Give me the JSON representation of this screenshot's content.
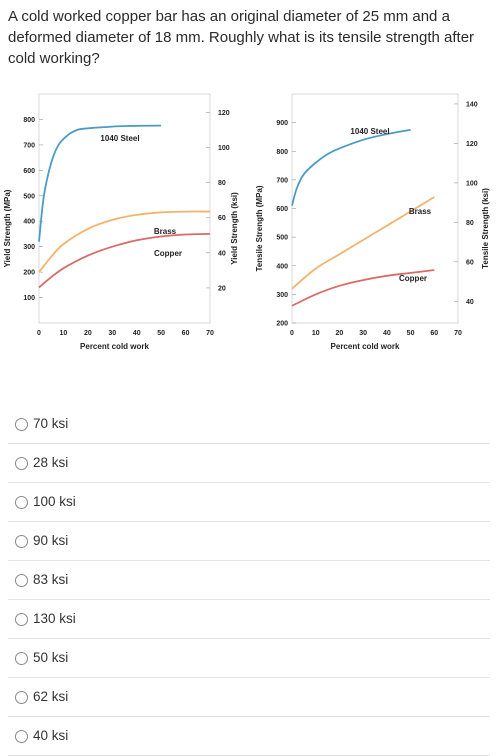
{
  "question": {
    "text": "A cold worked copper bar has an original diameter of 25 mm and a deformed diameter of 18 mm. Roughly what is its tensile strength after cold working?"
  },
  "chart_data": [
    {
      "type": "line",
      "xlabel": "Percent cold work",
      "ylabel": "Yield Strength (MPa)",
      "ylabel_right": "Yield Strength (ksi)",
      "xlim": [
        0,
        70
      ],
      "ylim": [
        0,
        900
      ],
      "x_ticks": [
        "0",
        "10",
        "20",
        "30",
        "40",
        "50",
        "60",
        "70"
      ],
      "y_ticks": [
        "100",
        "200",
        "300",
        "400",
        "500",
        "600",
        "700",
        "800"
      ],
      "y_ticks_right": [
        "20",
        "40",
        "60",
        "80",
        "100",
        "120"
      ],
      "series": [
        {
          "name": "1040 Steel",
          "color": "#4a9cc7",
          "x": [
            0,
            2,
            5,
            8,
            12,
            16,
            20,
            30,
            40,
            50
          ],
          "y": [
            320,
            500,
            630,
            700,
            740,
            760,
            765,
            772,
            775,
            776
          ]
        },
        {
          "name": "Brass",
          "color": "#f2b36e",
          "x": [
            0,
            5,
            10,
            20,
            30,
            40,
            50,
            60,
            70
          ],
          "y": [
            200,
            260,
            310,
            370,
            405,
            425,
            435,
            438,
            438
          ]
        },
        {
          "name": "Copper",
          "color": "#d96b66",
          "x": [
            0,
            5,
            10,
            20,
            30,
            40,
            50,
            60,
            70
          ],
          "y": [
            140,
            180,
            215,
            265,
            300,
            325,
            340,
            348,
            350
          ]
        }
      ]
    },
    {
      "type": "line",
      "xlabel": "Percent cold work",
      "ylabel": "Tensile Strength (MPa)",
      "ylabel_right": "Tensile Strength (ksi)",
      "xlim": [
        0,
        70
      ],
      "ylim": [
        200,
        1000
      ],
      "x_ticks": [
        "0",
        "10",
        "20",
        "30",
        "40",
        "50",
        "60",
        "70"
      ],
      "y_ticks": [
        "200",
        "300",
        "400",
        "500",
        "600",
        "700",
        "800",
        "900"
      ],
      "y_ticks_right": [
        "40",
        "60",
        "80",
        "100",
        "120",
        "140"
      ],
      "series": [
        {
          "name": "1040 Steel",
          "color": "#4a9cc7",
          "x": [
            0,
            2,
            5,
            10,
            15,
            20,
            30,
            40,
            50
          ],
          "y": [
            610,
            670,
            720,
            760,
            790,
            810,
            840,
            860,
            875
          ]
        },
        {
          "name": "Brass",
          "color": "#f2b36e",
          "x": [
            0,
            10,
            20,
            30,
            40,
            50,
            60
          ],
          "y": [
            320,
            390,
            440,
            490,
            540,
            590,
            640
          ]
        },
        {
          "name": "Copper",
          "color": "#d96b66",
          "x": [
            0,
            10,
            20,
            30,
            40,
            50,
            60
          ],
          "y": [
            260,
            300,
            330,
            350,
            365,
            375,
            385
          ]
        }
      ]
    }
  ],
  "options": [
    {
      "label": "70 ksi"
    },
    {
      "label": "28 ksi"
    },
    {
      "label": "100 ksi"
    },
    {
      "label": "90 ksi"
    },
    {
      "label": "83 ksi"
    },
    {
      "label": "130 ksi"
    },
    {
      "label": "50 ksi"
    },
    {
      "label": "62 ksi"
    },
    {
      "label": "40 ksi"
    }
  ]
}
